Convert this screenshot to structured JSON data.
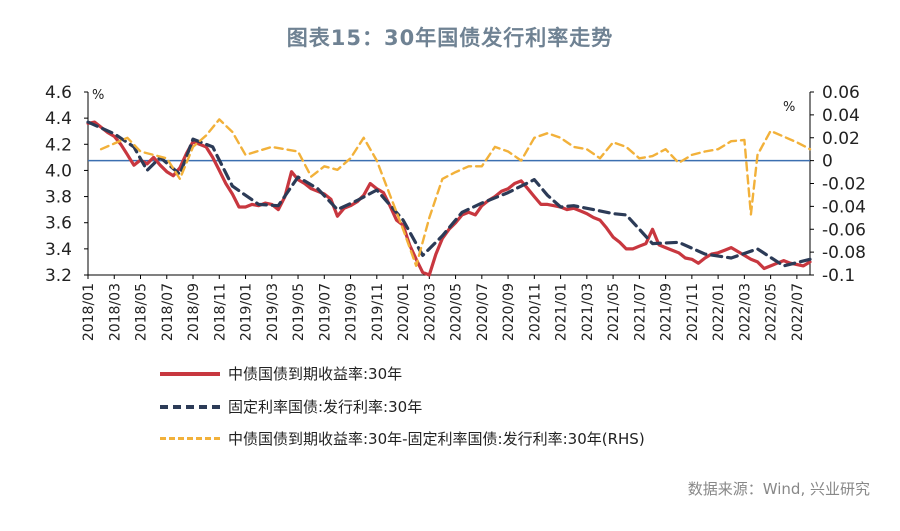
{
  "title": "图表15：30年国债发行利率走势",
  "source": "数据来源：Wind, 兴业研究",
  "units": {
    "left": "%",
    "right": "%"
  },
  "chart_data": {
    "type": "line",
    "title": "图表15：30年国债发行利率走势",
    "left_axis": {
      "ylim": [
        3.2,
        4.6
      ],
      "ticks": [
        "3.2",
        "3.4",
        "3.6",
        "3.8",
        "4.0",
        "4.2",
        "4.4",
        "4.6"
      ]
    },
    "right_axis": {
      "ylim": [
        -0.1,
        0.06
      ],
      "ticks": [
        "-0.1",
        "-0.08",
        "-0.06",
        "-0.04",
        "-0.02",
        "0",
        "0.02",
        "0.04",
        "0.06"
      ]
    },
    "x_tick_labels": [
      "2018/01",
      "2018/03",
      "2018/05",
      "2018/07",
      "2018/09",
      "2018/11",
      "2019/01",
      "2019/03",
      "2019/05",
      "2019/07",
      "2019/09",
      "2019/11",
      "2020/01",
      "2020/03",
      "2020/05",
      "2020/07",
      "2020/09",
      "2020/11",
      "2021/01",
      "2021/03",
      "2021/05",
      "2021/07",
      "2021/09",
      "2021/11",
      "2022/01",
      "2022/03",
      "2022/05",
      "2022/07"
    ],
    "x_unit": "months since 2018/01",
    "reference_line": {
      "axis": "right",
      "value": 0
    },
    "legend": [
      "中债国债到期收益率:30年",
      "固定利率国债:发行利率:30年",
      "中债国债到期收益率:30年-固定利率国债:发行利率:30年(RHS)"
    ],
    "series": [
      {
        "name": "中债国债到期收益率:30年",
        "axis": "left",
        "color": "#c8373f",
        "x": [
          0,
          0.5,
          1,
          1.5,
          2,
          2.5,
          3,
          3.5,
          4,
          4.5,
          5,
          5.5,
          6,
          6.5,
          7,
          7.5,
          8,
          8.5,
          9,
          9.5,
          10,
          10.5,
          11,
          11.5,
          12,
          12.5,
          13,
          13.5,
          14,
          14.5,
          15,
          15.5,
          16,
          16.5,
          17,
          17.5,
          18,
          18.5,
          19,
          19.5,
          20,
          20.5,
          21,
          21.5,
          22,
          22.5,
          23,
          23.5,
          24,
          24.5,
          25,
          25.5,
          26,
          26.5,
          27,
          27.5,
          28,
          28.5,
          29,
          29.5,
          30,
          30.5,
          31,
          31.5,
          32,
          32.5,
          33,
          33.5,
          34,
          34.5,
          35,
          35.5,
          36,
          36.5,
          37,
          37.5,
          38,
          38.5,
          39,
          39.5,
          40,
          40.5,
          41,
          41.5,
          42,
          42.5,
          43,
          43.5,
          44,
          44.5,
          45,
          45.5,
          46,
          46.5,
          47,
          47.5,
          48,
          48.5,
          49,
          49.5,
          50,
          50.5,
          51,
          51.5,
          52,
          52.5,
          53,
          53.5,
          54,
          54.5,
          55
        ],
        "values": [
          4.36,
          4.37,
          4.33,
          4.29,
          4.26,
          4.2,
          4.12,
          4.04,
          4.08,
          4.05,
          4.1,
          4.04,
          3.99,
          3.96,
          4.02,
          4.13,
          4.22,
          4.2,
          4.18,
          4.1,
          4.0,
          3.9,
          3.82,
          3.72,
          3.72,
          3.74,
          3.73,
          3.75,
          3.74,
          3.7,
          3.8,
          3.99,
          3.93,
          3.9,
          3.86,
          3.84,
          3.82,
          3.78,
          3.65,
          3.71,
          3.73,
          3.76,
          3.81,
          3.9,
          3.86,
          3.83,
          3.73,
          3.62,
          3.58,
          3.43,
          3.32,
          3.22,
          3.2,
          3.36,
          3.48,
          3.55,
          3.6,
          3.66,
          3.68,
          3.66,
          3.73,
          3.77,
          3.8,
          3.84,
          3.86,
          3.9,
          3.92,
          3.86,
          3.8,
          3.74,
          3.74,
          3.73,
          3.72,
          3.7,
          3.71,
          3.69,
          3.67,
          3.64,
          3.62,
          3.56,
          3.49,
          3.45,
          3.4,
          3.4,
          3.42,
          3.44,
          3.55,
          3.43,
          3.41,
          3.39,
          3.37,
          3.33,
          3.32,
          3.29,
          3.33,
          3.36,
          3.37,
          3.39,
          3.41,
          3.38,
          3.35,
          3.32,
          3.3,
          3.25,
          3.27,
          3.29,
          3.31,
          3.29,
          3.28,
          3.27,
          3.3
        ]
      },
      {
        "name": "固定利率国债:发行利率:30年",
        "axis": "left",
        "color": "#2c3b57",
        "x": [
          0,
          2,
          3.5,
          4.5,
          5.5,
          7,
          8,
          9.5,
          11,
          13,
          14.5,
          16,
          17.5,
          19,
          20.5,
          22,
          24,
          25.5,
          27,
          28.5,
          30,
          32,
          34,
          35,
          36,
          37,
          38.5,
          40,
          41,
          43,
          45,
          47,
          49,
          51,
          53,
          55
        ],
        "values": [
          4.37,
          4.28,
          4.18,
          4.0,
          4.1,
          3.97,
          4.24,
          4.18,
          3.88,
          3.74,
          3.73,
          3.95,
          3.86,
          3.7,
          3.77,
          3.85,
          3.62,
          3.35,
          3.5,
          3.68,
          3.75,
          3.83,
          3.93,
          3.81,
          3.72,
          3.73,
          3.7,
          3.67,
          3.66,
          3.44,
          3.45,
          3.36,
          3.33,
          3.4,
          3.27,
          3.32
        ]
      },
      {
        "name": "中债国债到期收益率:30年-固定利率国债:发行利率:30年(RHS)",
        "axis": "right",
        "color": "#f2b13a",
        "x": [
          1,
          2,
          3,
          4,
          5,
          6,
          7,
          8,
          9,
          10,
          11,
          12,
          14,
          16,
          17,
          18,
          19,
          20,
          21,
          22,
          23,
          24,
          25,
          26,
          27,
          28,
          29,
          30,
          31,
          32,
          33,
          34,
          35,
          36,
          37,
          38,
          39,
          40,
          41,
          42,
          43,
          44,
          45,
          46,
          47,
          48,
          49,
          50,
          50.5,
          51,
          52,
          53,
          54,
          55
        ],
        "values": [
          0.01,
          0.015,
          0.02,
          0.008,
          0.005,
          0.002,
          -0.016,
          0.012,
          0.022,
          0.036,
          0.025,
          0.005,
          0.012,
          0.008,
          -0.014,
          -0.005,
          -0.008,
          0.002,
          0.02,
          0.0,
          -0.03,
          -0.06,
          -0.092,
          -0.05,
          -0.016,
          -0.01,
          -0.005,
          -0.005,
          0.012,
          0.008,
          0.0,
          0.02,
          0.024,
          0.02,
          0.012,
          0.01,
          0.002,
          0.016,
          0.012,
          0.002,
          0.004,
          0.01,
          -0.002,
          0.005,
          0.008,
          0.01,
          0.017,
          0.018,
          -0.047,
          0.005,
          0.026,
          0.021,
          0.016,
          0.01
        ]
      }
    ]
  }
}
